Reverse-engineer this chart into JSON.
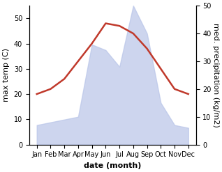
{
  "months": [
    "Jan",
    "Feb",
    "Mar",
    "Apr",
    "May",
    "Jun",
    "Jul",
    "Aug",
    "Sep",
    "Oct",
    "Nov",
    "Dec"
  ],
  "temperature": [
    20,
    22,
    26,
    33,
    40,
    48,
    47,
    44,
    38,
    30,
    22,
    20
  ],
  "precipitation": [
    7,
    8,
    9,
    10,
    36,
    34,
    28,
    50,
    40,
    15,
    7,
    6
  ],
  "temp_color": "#c0392b",
  "precip_color": "#b8c4e8",
  "ylabel_left": "max temp (C)",
  "ylabel_right": "med. precipitation (kg/m2)",
  "xlabel": "date (month)",
  "ylim_left": [
    0,
    55
  ],
  "ylim_right": [
    0,
    50
  ],
  "yticks_left": [
    0,
    10,
    20,
    30,
    40,
    50
  ],
  "yticks_right": [
    0,
    10,
    20,
    30,
    40,
    50
  ],
  "temp_linewidth": 1.8,
  "xlabel_fontsize": 8,
  "ylabel_fontsize": 8,
  "tick_fontsize": 7,
  "background_color": "#ffffff"
}
